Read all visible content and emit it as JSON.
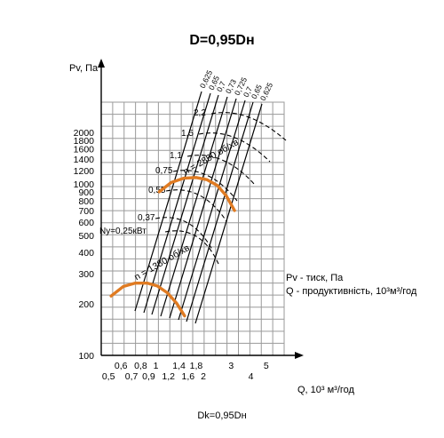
{
  "chart_data": {
    "type": "line",
    "title": "D=0,95Dн",
    "footer": "Dk=0,95Dн",
    "ylabel": "Pv, Па",
    "xlabel": "Q, 10³ м³/год",
    "y_scale": "log",
    "x_scale": "log",
    "ylim": [
      100,
      3000
    ],
    "xlim": [
      0.45,
      6.5
    ],
    "y_ticks": [
      {
        "value": 100,
        "label": "100"
      },
      {
        "value": 200,
        "label": "200"
      },
      {
        "value": 300,
        "label": "300"
      },
      {
        "value": 400,
        "label": "400"
      },
      {
        "value": 500,
        "label": "500"
      },
      {
        "value": 600,
        "label": "600"
      },
      {
        "value": 700,
        "label": "700"
      },
      {
        "value": 800,
        "label": "800"
      },
      {
        "value": 900,
        "label": "900"
      },
      {
        "value": 1000,
        "label": "1000"
      },
      {
        "value": 1200,
        "label": "1200"
      },
      {
        "value": 1400,
        "label": "1400"
      },
      {
        "value": 1600,
        "label": "1600"
      },
      {
        "value": 1800,
        "label": "1800"
      },
      {
        "value": 2000,
        "label": "2000"
      }
    ],
    "x_ticks_upper": [
      {
        "value": 0.6,
        "label": "0,6"
      },
      {
        "value": 0.8,
        "label": "0,8"
      },
      {
        "value": 1.0,
        "label": "1"
      },
      {
        "value": 1.4,
        "label": "1,4"
      },
      {
        "value": 1.8,
        "label": "1,8"
      },
      {
        "value": 3.0,
        "label": "3"
      },
      {
        "value": 5.0,
        "label": "5"
      }
    ],
    "x_ticks_lower": [
      {
        "value": 0.5,
        "label": "0,5"
      },
      {
        "value": 0.7,
        "label": "0,7"
      },
      {
        "value": 0.9,
        "label": "0,9"
      },
      {
        "value": 1.2,
        "label": "1,2"
      },
      {
        "value": 1.6,
        "label": "1,6"
      },
      {
        "value": 2.0,
        "label": "2"
      },
      {
        "value": 4.0,
        "label": "4"
      }
    ],
    "efficiency_labels": [
      "0,625",
      "0,65",
      "0,7",
      "0,73",
      "0,725",
      "0,7",
      "0,65",
      "0,625"
    ],
    "power_labels": [
      "Ny=0,25кВт",
      "0,37",
      "0,55",
      "0,75",
      "1,1",
      "1,5",
      "2,2"
    ],
    "series": [
      {
        "name": "n = 2850 об/хв",
        "color": "#e07b22",
        "x": [
          1.05,
          1.25,
          1.5,
          1.8,
          2.1,
          2.45,
          2.8,
          3.15
        ],
        "y": [
          900,
          1020,
          1080,
          1090,
          1060,
          980,
          850,
          700
        ]
      },
      {
        "name": "n = 1380 об/хв",
        "color": "#e07b22",
        "x": [
          0.52,
          0.62,
          0.74,
          0.88,
          1.02,
          1.18,
          1.35,
          1.52
        ],
        "y": [
          222,
          252,
          264,
          264,
          254,
          232,
          202,
          170
        ]
      }
    ],
    "legend": [
      "Pv - тиск, Па",
      "Q - продуктивність, 10³м³/год"
    ]
  }
}
